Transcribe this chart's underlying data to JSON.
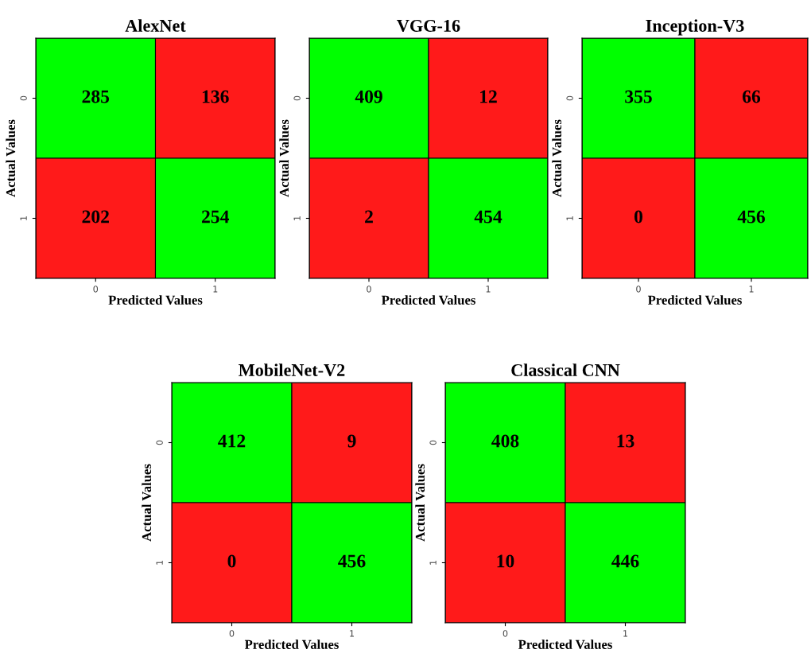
{
  "chart_data": [
    {
      "type": "heatmap",
      "title": "AlexNet",
      "xlabel": "Predicted Values",
      "ylabel": "Actual Values",
      "categories": [
        "0",
        "1"
      ],
      "y_categories": [
        "0",
        "1"
      ],
      "cells": [
        [
          285,
          136
        ],
        [
          202,
          254
        ]
      ],
      "colors": [
        "#00ff00",
        "#ff1a1a",
        "#ff1a1a",
        "#00ff00"
      ],
      "data_labels": true
    },
    {
      "type": "heatmap",
      "title": "VGG-16",
      "xlabel": "Predicted Values",
      "ylabel": "Actual Values",
      "categories": [
        "0",
        "1"
      ],
      "y_categories": [
        "0",
        "1"
      ],
      "cells": [
        [
          409,
          12
        ],
        [
          2,
          454
        ]
      ],
      "colors": [
        "#00ff00",
        "#ff1a1a",
        "#ff1a1a",
        "#00ff00"
      ],
      "data_labels": true
    },
    {
      "type": "heatmap",
      "title": "Inception-V3",
      "xlabel": "Predicted Values",
      "ylabel": "Actual Values",
      "categories": [
        "0",
        "1"
      ],
      "y_categories": [
        "0",
        "1"
      ],
      "cells": [
        [
          355,
          66
        ],
        [
          0,
          456
        ]
      ],
      "colors": [
        "#00ff00",
        "#ff1a1a",
        "#ff1a1a",
        "#00ff00"
      ],
      "data_labels": true
    },
    {
      "type": "heatmap",
      "title": "MobileNet-V2",
      "xlabel": "Predicted Values",
      "ylabel": "Actual Values",
      "categories": [
        "0",
        "1"
      ],
      "y_categories": [
        "0",
        "1"
      ],
      "cells": [
        [
          412,
          9
        ],
        [
          0,
          456
        ]
      ],
      "colors": [
        "#00ff00",
        "#ff1a1a",
        "#ff1a1a",
        "#00ff00"
      ],
      "data_labels": true
    },
    {
      "type": "heatmap",
      "title": "Classical CNN",
      "xlabel": "Predicted Values",
      "ylabel": "Actual Values",
      "categories": [
        "0",
        "1"
      ],
      "y_categories": [
        "0",
        "1"
      ],
      "cells": [
        [
          408,
          13
        ],
        [
          10,
          446
        ]
      ],
      "colors": [
        "#00ff00",
        "#ff1a1a",
        "#ff1a1a",
        "#00ff00"
      ],
      "data_labels": true
    }
  ]
}
